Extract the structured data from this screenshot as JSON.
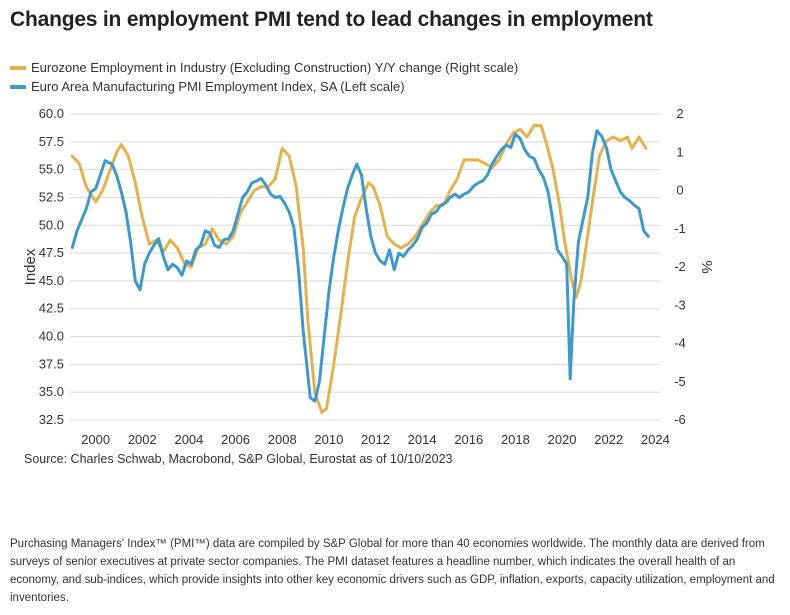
{
  "title": "Changes in employment PMI tend to lead changes in employment",
  "legend": [
    {
      "label": "Eurozone Employment in Industry (Excluding Construction) Y/Y change (Right scale)",
      "color": "#E8B04A"
    },
    {
      "label": "Euro Area Manufacturing PMI Employment Index, SA (Left scale)",
      "color": "#3A9AD0"
    }
  ],
  "source": "Source: Charles Schwab, Macrobond, S&P Global, Eurostat as of 10/10/2023",
  "footnote": "Purchasing Managers' Index™ (PMI™) data are compiled by S&P Global for more than 40 economies worldwide. The monthly data are derived from surveys of senior executives at private sector companies. The PMI dataset features a headline number, which indicates the overall health of an economy, and sub-indices, which provide insights into other key economic drivers such as GDP, inflation, exports, capacity utilization, employment and inventories.",
  "chart_data": {
    "type": "line",
    "left_axis": {
      "label": "Index",
      "range": [
        32.5,
        60.0
      ],
      "ticks": [
        "60.0",
        "57.5",
        "55.0",
        "52.5",
        "50.0",
        "47.5",
        "45.0",
        "42.5",
        "40.0",
        "37.5",
        "35.0",
        "32.5"
      ]
    },
    "right_axis": {
      "label": "%",
      "range": [
        -6,
        2
      ],
      "ticks": [
        "2",
        "1",
        "0",
        "-1",
        "-2",
        "-3",
        "-4",
        "-5",
        "-6"
      ]
    },
    "x_axis": {
      "ticks": [
        "2000",
        "2002",
        "2004",
        "2006",
        "2008",
        "2010",
        "2012",
        "2014",
        "2016",
        "2018",
        "2020",
        "2022",
        "2024"
      ],
      "range": [
        1998.9,
        2024.2
      ]
    },
    "grid": "horizontal",
    "series": [
      {
        "name": "Eurozone Employment in Industry (Excluding Construction) Y/Y change (Right scale)",
        "axis": "right",
        "color": "#E8B04A",
        "x": [
          1999.0,
          1999.3,
          1999.6,
          2000.0,
          2000.3,
          2000.6,
          2000.9,
          2001.1,
          2001.4,
          2001.7,
          2002.0,
          2002.3,
          2002.6,
          2002.9,
          2003.2,
          2003.5,
          2003.8,
          2004.1,
          2004.4,
          2004.7,
          2005.0,
          2005.3,
          2005.6,
          2005.9,
          2006.2,
          2006.5,
          2006.8,
          2007.1,
          2007.4,
          2007.7,
          2008.0,
          2008.3,
          2008.6,
          2008.9,
          2009.1,
          2009.4,
          2009.7,
          2009.9,
          2010.2,
          2010.5,
          2010.8,
          2011.1,
          2011.4,
          2011.7,
          2011.9,
          2012.2,
          2012.5,
          2012.8,
          2013.1,
          2013.4,
          2013.7,
          2014.0,
          2014.3,
          2014.6,
          2014.9,
          2015.2,
          2015.5,
          2015.8,
          2016.1,
          2016.4,
          2016.7,
          2017.0,
          2017.3,
          2017.6,
          2017.9,
          2018.2,
          2018.5,
          2018.8,
          2019.1,
          2019.3,
          2019.6,
          2019.9,
          2020.1,
          2020.4,
          2020.6,
          2020.8,
          2021.0,
          2021.3,
          2021.6,
          2021.9,
          2022.2,
          2022.5,
          2022.8,
          2023.0,
          2023.3,
          2023.6
        ],
        "values": [
          0.9,
          0.7,
          0.1,
          -0.3,
          0.0,
          0.5,
          1.0,
          1.2,
          0.9,
          0.2,
          -0.7,
          -1.4,
          -1.3,
          -1.6,
          -1.3,
          -1.5,
          -1.9,
          -2.0,
          -1.5,
          -1.4,
          -1.0,
          -1.3,
          -1.4,
          -1.2,
          -0.6,
          -0.3,
          0.0,
          0.1,
          0.1,
          0.3,
          1.1,
          0.9,
          0.1,
          -1.5,
          -3.4,
          -5.3,
          -5.8,
          -5.7,
          -4.6,
          -3.3,
          -1.9,
          -0.7,
          -0.2,
          0.2,
          0.1,
          -0.4,
          -1.2,
          -1.4,
          -1.5,
          -1.4,
          -1.2,
          -0.9,
          -0.6,
          -0.4,
          -0.4,
          0.0,
          0.3,
          0.8,
          0.8,
          0.8,
          0.7,
          0.6,
          0.8,
          1.2,
          1.5,
          1.6,
          1.4,
          1.7,
          1.7,
          1.3,
          0.6,
          -0.4,
          -1.3,
          -2.3,
          -2.8,
          -2.4,
          -1.6,
          -0.3,
          0.9,
          1.3,
          1.4,
          1.3,
          1.4,
          1.1,
          1.4,
          1.1
        ]
      },
      {
        "name": "Euro Area Manufacturing PMI Employment Index, SA (Left scale)",
        "axis": "left",
        "color": "#3A9AD0",
        "x": [
          1999.0,
          1999.2,
          1999.4,
          1999.6,
          1999.8,
          2000.0,
          2000.2,
          2000.4,
          2000.7,
          2000.9,
          2001.1,
          2001.3,
          2001.5,
          2001.7,
          2001.9,
          2002.1,
          2002.3,
          2002.5,
          2002.7,
          2002.9,
          2003.1,
          2003.3,
          2003.5,
          2003.7,
          2003.9,
          2004.1,
          2004.3,
          2004.5,
          2004.7,
          2004.9,
          2005.1,
          2005.3,
          2005.5,
          2005.7,
          2005.9,
          2006.1,
          2006.3,
          2006.5,
          2006.7,
          2006.9,
          2007.1,
          2007.3,
          2007.5,
          2007.7,
          2007.9,
          2008.1,
          2008.3,
          2008.5,
          2008.7,
          2008.9,
          2009.1,
          2009.2,
          2009.4,
          2009.6,
          2009.8,
          2010.0,
          2010.2,
          2010.4,
          2010.6,
          2010.8,
          2011.0,
          2011.2,
          2011.4,
          2011.6,
          2011.8,
          2012.0,
          2012.2,
          2012.4,
          2012.6,
          2012.8,
          2013.0,
          2013.2,
          2013.4,
          2013.6,
          2013.8,
          2014.0,
          2014.2,
          2014.4,
          2014.6,
          2014.8,
          2015.0,
          2015.2,
          2015.4,
          2015.6,
          2015.8,
          2016.0,
          2016.2,
          2016.4,
          2016.6,
          2016.8,
          2017.0,
          2017.2,
          2017.4,
          2017.6,
          2017.8,
          2018.0,
          2018.2,
          2018.4,
          2018.6,
          2018.8,
          2019.0,
          2019.2,
          2019.4,
          2019.6,
          2019.8,
          2020.0,
          2020.2,
          2020.35,
          2020.5,
          2020.7,
          2020.9,
          2021.1,
          2021.3,
          2021.5,
          2021.7,
          2021.9,
          2022.1,
          2022.3,
          2022.5,
          2022.7,
          2022.9,
          2023.1,
          2023.3,
          2023.5,
          2023.7
        ],
        "values": [
          48.0,
          49.5,
          50.5,
          51.5,
          53.0,
          53.3,
          54.5,
          55.8,
          55.5,
          54.5,
          53.0,
          51.2,
          48.5,
          45.0,
          44.2,
          46.5,
          47.5,
          48.2,
          48.8,
          47.2,
          46.0,
          46.5,
          46.2,
          45.5,
          46.8,
          46.5,
          47.8,
          48.2,
          49.5,
          49.3,
          48.2,
          48.0,
          48.7,
          48.8,
          49.5,
          51.0,
          52.5,
          53.0,
          53.8,
          54.0,
          54.2,
          53.6,
          52.8,
          52.5,
          52.6,
          52.0,
          51.2,
          49.8,
          46.0,
          40.5,
          36.5,
          34.5,
          34.2,
          36.0,
          40.0,
          44.0,
          47.0,
          49.5,
          51.5,
          53.3,
          54.5,
          55.5,
          54.5,
          51.5,
          49.0,
          47.5,
          46.8,
          46.5,
          47.8,
          46.0,
          47.5,
          47.2,
          47.8,
          48.2,
          48.8,
          49.8,
          50.2,
          51.0,
          51.2,
          51.8,
          52.0,
          52.5,
          52.8,
          52.5,
          52.8,
          53.0,
          53.5,
          53.8,
          54.0,
          54.5,
          55.5,
          56.2,
          56.8,
          57.2,
          57.0,
          58.2,
          57.8,
          56.8,
          56.2,
          56.0,
          55.0,
          54.3,
          53.0,
          50.5,
          47.8,
          47.2,
          46.5,
          36.2,
          43.0,
          48.5,
          50.5,
          52.5,
          56.5,
          58.5,
          58.0,
          57.0,
          55.0,
          54.0,
          53.0,
          52.5,
          52.2,
          51.8,
          51.5,
          49.5,
          49.0
        ]
      }
    ]
  }
}
